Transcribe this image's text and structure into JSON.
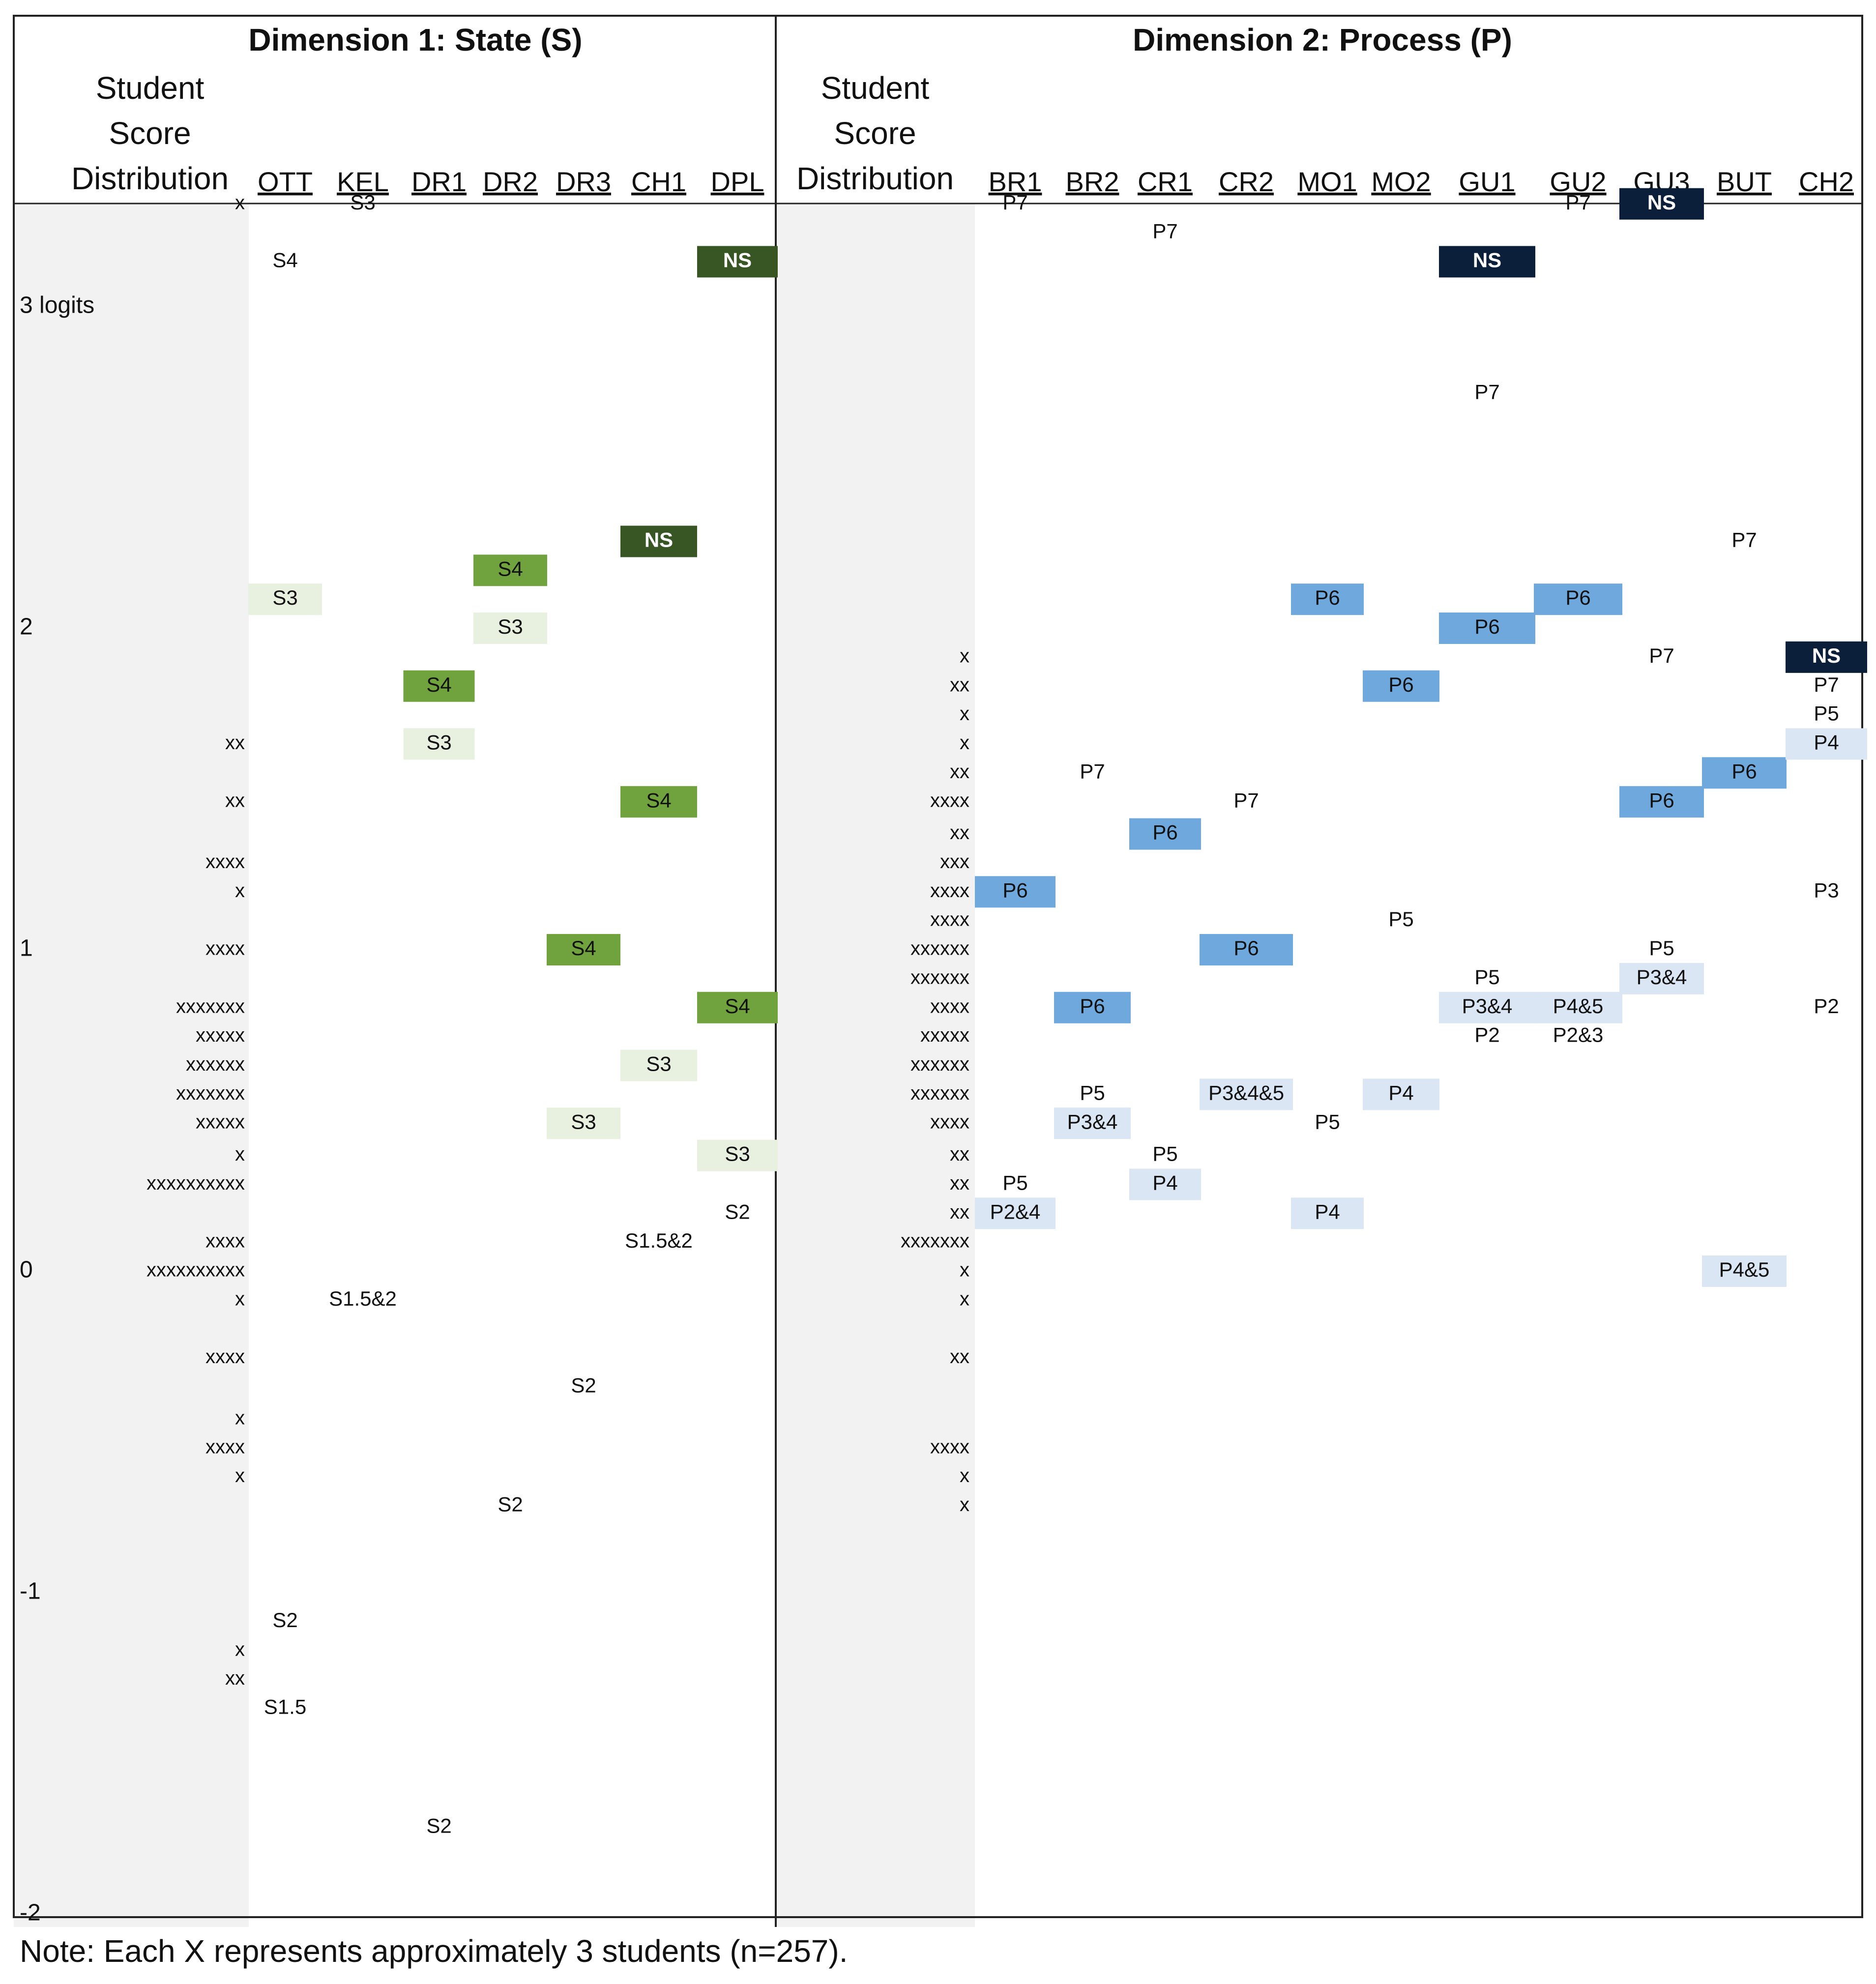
{
  "chart_data": {
    "type": "wright-map",
    "panels": [
      {
        "title": "Dimension 1: State (S)",
        "header": [
          "Student",
          "Score",
          "Distribution"
        ],
        "columns": [
          "OTT",
          "KEL",
          "DR1",
          "DR2",
          "DR3",
          "CH1",
          "DPL"
        ],
        "distribution": [
          {
            "logit": 3.32,
            "marks": "x"
          },
          {
            "logit": 1.64,
            "marks": "xx"
          },
          {
            "logit": 1.46,
            "marks": "xx"
          },
          {
            "logit": 1.27,
            "marks": "xxxx"
          },
          {
            "logit": 1.18,
            "marks": "x"
          },
          {
            "logit": 1.0,
            "marks": "xxxx"
          },
          {
            "logit": 0.82,
            "marks": "xxxxxxx"
          },
          {
            "logit": 0.73,
            "marks": "xxxxx"
          },
          {
            "logit": 0.64,
            "marks": "xxxxxx"
          },
          {
            "logit": 0.55,
            "marks": "xxxxxxx"
          },
          {
            "logit": 0.46,
            "marks": "xxxxx"
          },
          {
            "logit": 0.36,
            "marks": "x"
          },
          {
            "logit": 0.27,
            "marks": "xxxxxxxxxx"
          },
          {
            "logit": 0.09,
            "marks": "xxxx"
          },
          {
            "logit": 0.0,
            "marks": "xxxxxxxxxx"
          },
          {
            "logit": -0.09,
            "marks": "x"
          },
          {
            "logit": -0.27,
            "marks": "xxxx"
          },
          {
            "logit": -0.46,
            "marks": "x"
          },
          {
            "logit": -0.55,
            "marks": "xxxx"
          },
          {
            "logit": -0.64,
            "marks": "x"
          },
          {
            "logit": -1.18,
            "marks": "x"
          },
          {
            "logit": -1.27,
            "marks": "xx"
          }
        ],
        "items": [
          {
            "column": "OTT",
            "label": "S4",
            "logit": 3.14,
            "shade": "none"
          },
          {
            "column": "OTT",
            "label": "S3",
            "logit": 2.09,
            "shade": "light"
          },
          {
            "column": "OTT",
            "label": "S2",
            "logit": -1.09,
            "shade": "none"
          },
          {
            "column": "OTT",
            "label": "S1.5",
            "logit": -1.36,
            "shade": "none"
          },
          {
            "column": "KEL",
            "label": "S3",
            "logit": 3.32,
            "shade": "none"
          },
          {
            "column": "KEL",
            "label": "S1.5&2",
            "logit": -0.09,
            "shade": "none"
          },
          {
            "column": "DR1",
            "label": "S4",
            "logit": 1.82,
            "shade": "medium"
          },
          {
            "column": "DR1",
            "label": "S3",
            "logit": 1.64,
            "shade": "light"
          },
          {
            "column": "DR1",
            "label": "S2",
            "logit": -1.73,
            "shade": "none"
          },
          {
            "column": "DR2",
            "label": "S4",
            "logit": 2.18,
            "shade": "medium"
          },
          {
            "column": "DR2",
            "label": "S3",
            "logit": 2.0,
            "shade": "light"
          },
          {
            "column": "DR2",
            "label": "S2",
            "logit": -0.73,
            "shade": "none"
          },
          {
            "column": "DR3",
            "label": "S4",
            "logit": 1.0,
            "shade": "medium"
          },
          {
            "column": "DR3",
            "label": "S3",
            "logit": 0.46,
            "shade": "light"
          },
          {
            "column": "DR3",
            "label": "S2",
            "logit": -0.36,
            "shade": "none"
          },
          {
            "column": "CH1",
            "label": "NS",
            "logit": 2.27,
            "shade": "dark"
          },
          {
            "column": "CH1",
            "label": "S4",
            "logit": 1.46,
            "shade": "medium"
          },
          {
            "column": "CH1",
            "label": "S3",
            "logit": 0.64,
            "shade": "light"
          },
          {
            "column": "CH1",
            "label": "S1.5&2",
            "logit": 0.09,
            "shade": "none"
          },
          {
            "column": "DPL",
            "label": "NS",
            "logit": 3.14,
            "shade": "dark"
          },
          {
            "column": "DPL",
            "label": "S4",
            "logit": 0.82,
            "shade": "medium"
          },
          {
            "column": "DPL",
            "label": "S3",
            "logit": 0.36,
            "shade": "light"
          },
          {
            "column": "DPL",
            "label": "S2",
            "logit": 0.18,
            "shade": "none"
          }
        ]
      },
      {
        "title": "Dimension 2: Process (P)",
        "header": [
          "Student",
          "Score",
          "Distribution"
        ],
        "columns": [
          "BR1",
          "BR2",
          "CR1",
          "CR2",
          "MO1",
          "MO2",
          "GU1",
          "GU2",
          "GU3",
          "BUT",
          "CH2"
        ],
        "distribution": [
          {
            "logit": 1.91,
            "marks": "x"
          },
          {
            "logit": 1.82,
            "marks": "xx"
          },
          {
            "logit": 1.73,
            "marks": "x"
          },
          {
            "logit": 1.64,
            "marks": "x"
          },
          {
            "logit": 1.55,
            "marks": "xx"
          },
          {
            "logit": 1.46,
            "marks": "xxxx"
          },
          {
            "logit": 1.36,
            "marks": "xx"
          },
          {
            "logit": 1.27,
            "marks": "xxx"
          },
          {
            "logit": 1.18,
            "marks": "xxxx"
          },
          {
            "logit": 1.09,
            "marks": "xxxx"
          },
          {
            "logit": 1.0,
            "marks": "xxxxxx"
          },
          {
            "logit": 0.91,
            "marks": "xxxxxx"
          },
          {
            "logit": 0.82,
            "marks": "xxxx"
          },
          {
            "logit": 0.73,
            "marks": "xxxxx"
          },
          {
            "logit": 0.64,
            "marks": "xxxxxx"
          },
          {
            "logit": 0.55,
            "marks": "xxxxxx"
          },
          {
            "logit": 0.46,
            "marks": "xxxx"
          },
          {
            "logit": 0.36,
            "marks": "xx"
          },
          {
            "logit": 0.27,
            "marks": "xx"
          },
          {
            "logit": 0.18,
            "marks": "xx"
          },
          {
            "logit": 0.09,
            "marks": "xxxxxxx"
          },
          {
            "logit": 0.0,
            "marks": "x"
          },
          {
            "logit": -0.09,
            "marks": "x"
          },
          {
            "logit": -0.27,
            "marks": "xx"
          },
          {
            "logit": -0.55,
            "marks": "xxxx"
          },
          {
            "logit": -0.64,
            "marks": "x"
          },
          {
            "logit": -0.73,
            "marks": "x"
          }
        ],
        "items": [
          {
            "column": "BR1",
            "label": "P7",
            "logit": 3.32,
            "shade": "none"
          },
          {
            "column": "BR1",
            "label": "P6",
            "logit": 1.18,
            "shade": "medium"
          },
          {
            "column": "BR1",
            "label": "P5",
            "logit": 0.27,
            "shade": "none"
          },
          {
            "column": "BR1",
            "label": "P2&4",
            "logit": 0.18,
            "shade": "light"
          },
          {
            "column": "BR2",
            "label": "P7",
            "logit": 1.55,
            "shade": "none"
          },
          {
            "column": "BR2",
            "label": "P6",
            "logit": 0.82,
            "shade": "medium"
          },
          {
            "column": "BR2",
            "label": "P5",
            "logit": 0.55,
            "shade": "none"
          },
          {
            "column": "BR2",
            "label": "P3&4",
            "logit": 0.46,
            "shade": "light"
          },
          {
            "column": "CR1",
            "label": "P7",
            "logit": 3.23,
            "shade": "none"
          },
          {
            "column": "CR1",
            "label": "P6",
            "logit": 1.36,
            "shade": "medium"
          },
          {
            "column": "CR1",
            "label": "P5",
            "logit": 0.36,
            "shade": "none"
          },
          {
            "column": "CR1",
            "label": "P4",
            "logit": 0.27,
            "shade": "light"
          },
          {
            "column": "CR2",
            "label": "P7",
            "logit": 1.46,
            "shade": "none"
          },
          {
            "column": "CR2",
            "label": "P6",
            "logit": 1.0,
            "shade": "medium"
          },
          {
            "column": "CR2",
            "label": "P3&4&5",
            "logit": 0.55,
            "shade": "light"
          },
          {
            "column": "MO1",
            "label": "P6",
            "logit": 2.09,
            "shade": "medium"
          },
          {
            "column": "MO1",
            "label": "P5",
            "logit": 0.46,
            "shade": "none"
          },
          {
            "column": "MO1",
            "label": "P4",
            "logit": 0.18,
            "shade": "light"
          },
          {
            "column": "MO2",
            "label": "P6",
            "logit": 1.82,
            "shade": "medium"
          },
          {
            "column": "MO2",
            "label": "P5",
            "logit": 1.09,
            "shade": "none"
          },
          {
            "column": "MO2",
            "label": "P4",
            "logit": 0.55,
            "shade": "light"
          },
          {
            "column": "GU1",
            "label": "NS",
            "logit": 3.14,
            "shade": "dark"
          },
          {
            "column": "GU1",
            "label": "P7",
            "logit": 2.73,
            "shade": "none"
          },
          {
            "column": "GU1",
            "label": "P6",
            "logit": 2.0,
            "shade": "medium"
          },
          {
            "column": "GU1",
            "label": "P5",
            "logit": 0.91,
            "shade": "none"
          },
          {
            "column": "GU1",
            "label": "P3&4",
            "logit": 0.82,
            "shade": "light"
          },
          {
            "column": "GU1",
            "label": "P2",
            "logit": 0.73,
            "shade": "none"
          },
          {
            "column": "GU2",
            "label": "P7",
            "logit": 3.32,
            "shade": "none"
          },
          {
            "column": "GU2",
            "label": "P6",
            "logit": 2.09,
            "shade": "medium"
          },
          {
            "column": "GU2",
            "label": "P4&5",
            "logit": 0.82,
            "shade": "light"
          },
          {
            "column": "GU2",
            "label": "P2&3",
            "logit": 0.73,
            "shade": "none"
          },
          {
            "column": "GU3",
            "label": "NS",
            "logit": 3.32,
            "shade": "dark"
          },
          {
            "column": "GU3",
            "label": "P7",
            "logit": 1.91,
            "shade": "none"
          },
          {
            "column": "GU3",
            "label": "P6",
            "logit": 1.46,
            "shade": "medium"
          },
          {
            "column": "GU3",
            "label": "P5",
            "logit": 1.0,
            "shade": "none"
          },
          {
            "column": "GU3",
            "label": "P3&4",
            "logit": 0.91,
            "shade": "light"
          },
          {
            "column": "BUT",
            "label": "P7",
            "logit": 2.27,
            "shade": "none"
          },
          {
            "column": "BUT",
            "label": "P6",
            "logit": 1.55,
            "shade": "medium"
          },
          {
            "column": "BUT",
            "label": "P4&5",
            "logit": 0.0,
            "shade": "light"
          },
          {
            "column": "CH2",
            "label": "NS",
            "logit": 1.91,
            "shade": "dark"
          },
          {
            "column": "CH2",
            "label": "P7",
            "logit": 1.82,
            "shade": "none"
          },
          {
            "column": "CH2",
            "label": "P5",
            "logit": 1.73,
            "shade": "none"
          },
          {
            "column": "CH2",
            "label": "P4",
            "logit": 1.64,
            "shade": "light"
          },
          {
            "column": "CH2",
            "label": "P3",
            "logit": 1.18,
            "shade": "none"
          },
          {
            "column": "CH2",
            "label": "P2",
            "logit": 0.82,
            "shade": "none"
          }
        ]
      }
    ],
    "axis": {
      "ylim": [
        -2,
        3.45
      ],
      "ticks": [
        {
          "value": 3,
          "label": "3 logits"
        },
        {
          "value": 2,
          "label": "2"
        },
        {
          "value": 1,
          "label": "1"
        },
        {
          "value": 0,
          "label": "0"
        },
        {
          "value": -1,
          "label": "-1"
        },
        {
          "value": -2,
          "label": "-2"
        }
      ]
    },
    "colors": {
      "state": {
        "dark": "#375623",
        "medium": "#70a33d",
        "light": "#e8f0df"
      },
      "process": {
        "dark": "#0b1f3a",
        "medium": "#6fa8dc",
        "light": "#dae6f3"
      },
      "distribution_band": "#f2f2f2",
      "border": "#222222"
    }
  },
  "note": "Note: Each X represents approximately 3 students (n=257)."
}
